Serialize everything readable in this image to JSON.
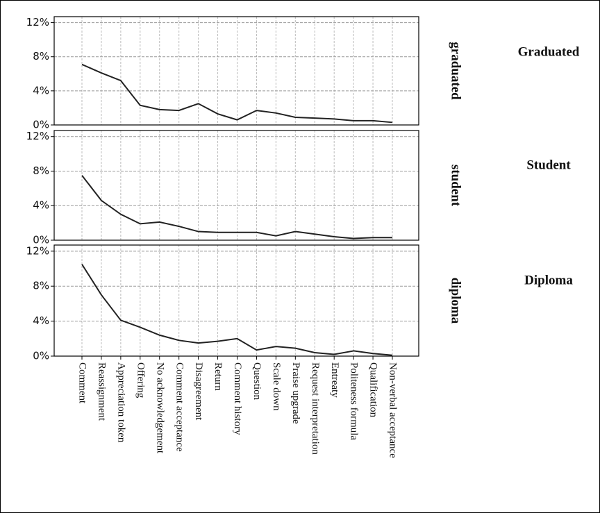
{
  "chart_data": {
    "type": "line",
    "categories": [
      "Comment",
      "Reassignment",
      "Appreciation token",
      "Offering",
      "No acknowledgement",
      "Comment acceptance",
      "Disagreement",
      "Return",
      "Comment history",
      "Question",
      "Scale down",
      "Praise upgrade",
      "Request interpretation",
      "Entreaty",
      "Politeness formula",
      "Qualification",
      "Non-verbal acceptance"
    ],
    "series": [
      {
        "name": "graduated",
        "label": "Graduated",
        "color": "#222222",
        "values": [
          7.1,
          6.1,
          5.2,
          2.3,
          1.8,
          1.7,
          2.5,
          1.3,
          0.6,
          1.7,
          1.4,
          0.9,
          0.8,
          0.7,
          0.5,
          0.5,
          0.3
        ]
      },
      {
        "name": "student",
        "label": "Student",
        "color": "#222222",
        "values": [
          7.5,
          4.6,
          3.0,
          1.9,
          2.1,
          1.6,
          1.0,
          0.9,
          0.9,
          0.9,
          0.5,
          1.0,
          0.7,
          0.4,
          0.2,
          0.3,
          0.3
        ]
      },
      {
        "name": "diploma",
        "label": "Diploma",
        "color": "#222222",
        "values": [
          10.5,
          7.0,
          4.1,
          3.3,
          2.4,
          1.8,
          1.5,
          1.7,
          2.0,
          0.7,
          1.1,
          0.9,
          0.4,
          0.2,
          0.6,
          0.3,
          0.1
        ]
      }
    ],
    "ylim": [
      0,
      12.7
    ],
    "yticks": [
      {
        "value": 0,
        "label": "0%"
      },
      {
        "value": 4,
        "label": "4%"
      },
      {
        "value": 8,
        "label": "8%"
      },
      {
        "value": 12,
        "label": "12%"
      }
    ],
    "grid": true
  }
}
